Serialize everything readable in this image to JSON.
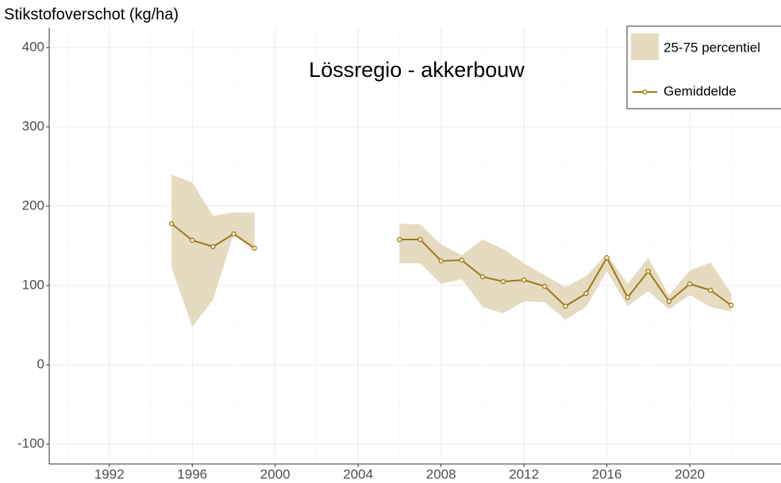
{
  "chart_data": {
    "type": "line",
    "title": "Lössregio - akkerbouw",
    "y_label": "Stikstofoverschot (kg/ha)",
    "x": [
      1995,
      1996,
      1997,
      1998,
      1999,
      2000,
      2001,
      2002,
      2003,
      2004,
      2005,
      2006,
      2007,
      2008,
      2009,
      2010,
      2011,
      2012,
      2013,
      2014,
      2015,
      2016,
      2017,
      2018,
      2019,
      2020,
      2021,
      2022
    ],
    "band": {
      "name": "25-75 percentiel",
      "color": "#e5dbc0",
      "lower": [
        123,
        48,
        82,
        165,
        147,
        null,
        null,
        null,
        null,
        null,
        null,
        128,
        128,
        102,
        108,
        73,
        65,
        80,
        79,
        57,
        73,
        118,
        74,
        93,
        70,
        88,
        73,
        67
      ],
      "upper": [
        240,
        230,
        188,
        192,
        192,
        null,
        null,
        null,
        null,
        null,
        null,
        178,
        177,
        152,
        138,
        158,
        146,
        128,
        113,
        98,
        112,
        140,
        102,
        135,
        88,
        119,
        129,
        90
      ]
    },
    "series": [
      {
        "name": "Gemiddelde",
        "color": "#9b7a16",
        "values": [
          178,
          157,
          149,
          165,
          147,
          null,
          null,
          null,
          null,
          null,
          null,
          158,
          158,
          131,
          132,
          111,
          105,
          107,
          99,
          74,
          90,
          135,
          85,
          118,
          80,
          102,
          94,
          75
        ]
      }
    ],
    "xlim": [
      1989.1,
      2024.4
    ],
    "xticks": [
      1992,
      1996,
      2000,
      2004,
      2008,
      2012,
      2016,
      2020
    ],
    "minor_xticks": [
      1990,
      1994,
      1998,
      2002,
      2006,
      2010,
      2014,
      2018,
      2022
    ],
    "ylim": [
      -125,
      425
    ],
    "yticks": [
      -100,
      0,
      100,
      200,
      300,
      400
    ],
    "minor_yticks": [
      -50,
      50,
      150,
      250,
      350
    ],
    "grid": true,
    "legend": "top-right"
  }
}
